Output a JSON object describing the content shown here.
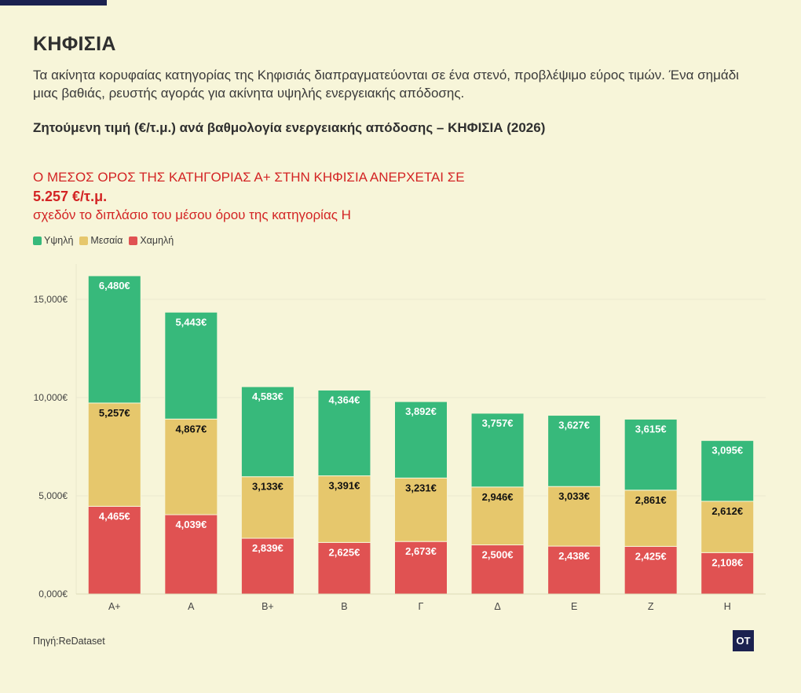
{
  "header": {
    "city": "ΚΗΦΙΣΙΑ",
    "intro": "Τα ακίνητα κορυφαίας κατηγορίας της Κηφισιάς διαπραγματεύονται σε ένα στενό, προβλέψιμο εύρος τιμών. Ένα σημάδι μιας βαθιάς, ρευστής αγοράς για ακίνητα υψηλής ενεργειακής απόδοσης.",
    "chart_title": "Ζητούμενη τιμή (€/τ.μ.) ανά βαθμολογία ενεργειακής απόδοσης – ΚΗΦΙΣΙΑ (2026)"
  },
  "headline": {
    "line1": "Ο ΜΕΣΟΣ ΟΡΟΣ ΤΗΣ ΚΑΤΗΓΟΡΙΑΣ Α+ ΣΤΗΝ ΚΗΦΙΣΙΑ ΑΝΕΡΧΕΤΑΙ ΣΕ",
    "line2": "5.257 €/τ.μ.",
    "line3": "σχεδόν το διπλάσιο του μέσου όρου της κατηγορίας Η"
  },
  "legend": [
    {
      "label": "Υψηλή",
      "color": "#37b97b"
    },
    {
      "label": "Μεσαία",
      "color": "#e6c76c"
    },
    {
      "label": "Χαμηλή",
      "color": "#e05252"
    }
  ],
  "footer": {
    "source": "Πηγή:ReDataset",
    "logo": "OT"
  },
  "chart_data": {
    "type": "bar",
    "stacked": true,
    "categories": [
      "A+",
      "A",
      "B+",
      "B",
      "Γ",
      "Δ",
      "E",
      "Z",
      "H"
    ],
    "series": [
      {
        "name": "Χαμηλή",
        "color": "#e05252",
        "label_color": "#ffffff",
        "values": [
          4465,
          4039,
          2839,
          2625,
          2673,
          2500,
          2438,
          2425,
          2108
        ],
        "labels": [
          "4,465€",
          "4,039€",
          "2,839€",
          "2,625€",
          "2,673€",
          "2,500€",
          "2,438€",
          "2,425€",
          "2,108€"
        ]
      },
      {
        "name": "Μεσαία",
        "color": "#e6c76c",
        "label_color": "#111111",
        "values": [
          5257,
          4867,
          3133,
          3391,
          3231,
          2946,
          3033,
          2861,
          2612
        ],
        "labels": [
          "5,257€",
          "4,867€",
          "3,133€",
          "3,391€",
          "3,231€",
          "2,946€",
          "3,033€",
          "2,861€",
          "2,612€"
        ]
      },
      {
        "name": "Υψηλή",
        "color": "#37b97b",
        "label_color": "#ffffff",
        "values": [
          6480,
          5443,
          4583,
          4364,
          3892,
          3757,
          3627,
          3615,
          3095
        ],
        "labels": [
          "6,480€",
          "5,443€",
          "4,583€",
          "4,364€",
          "3,892€",
          "3,757€",
          "3,627€",
          "3,615€",
          "3,095€"
        ]
      }
    ],
    "y_ticks": [
      0,
      5000,
      10000,
      15000
    ],
    "y_tick_labels": [
      "0,000€",
      "5,000€",
      "10,000€",
      "15,000€"
    ],
    "ylim": [
      0,
      16800
    ],
    "grid": true,
    "legend_position": "top-left"
  }
}
